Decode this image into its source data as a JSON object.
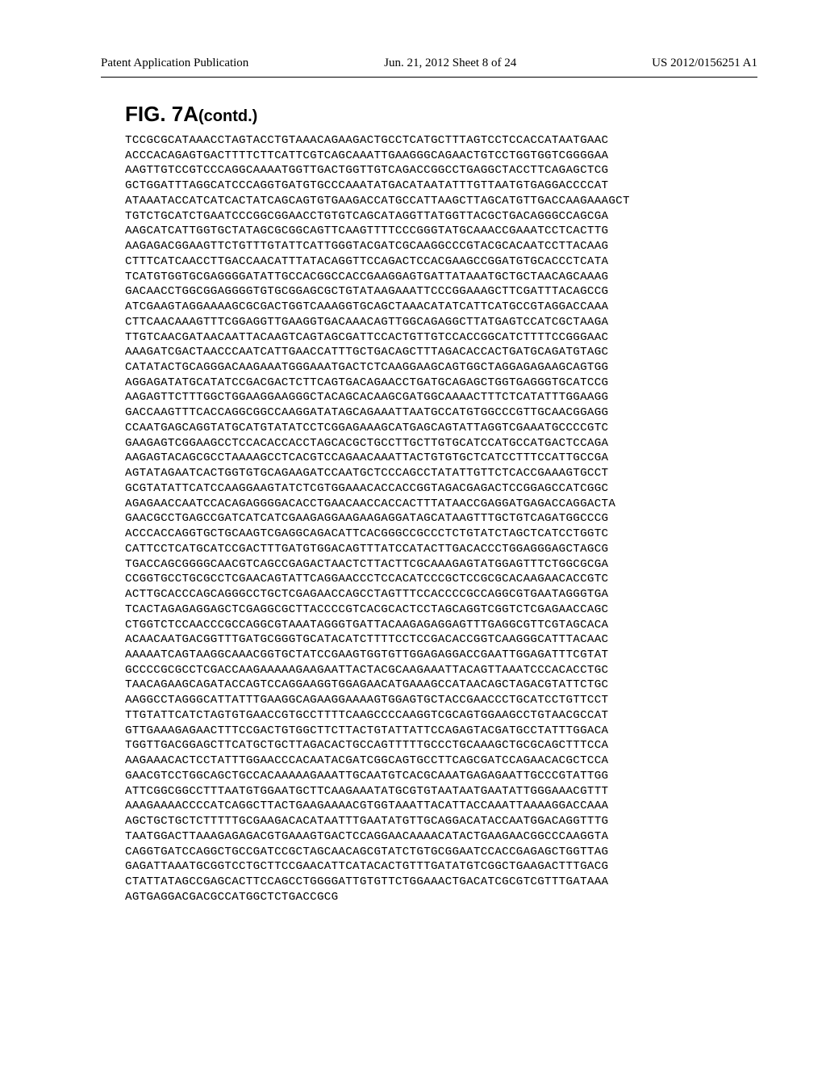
{
  "header": {
    "left": "Patent Application Publication",
    "center": "Jun. 21, 2012  Sheet 8 of 24",
    "right": "US 2012/0156251 A1"
  },
  "figure": {
    "title_main": "FIG. 7A",
    "title_suffix": "(contd.)"
  },
  "sequence_lines": [
    "TCCGCGCATAAACCTAGTACCTGTAAACAGAAGACTGCCTCATGCTTTAGTCCTCCACCATAATGAAC",
    "ACCCACAGAGTGACTTTTCTTCATTCGTCAGCAAATTGAAGGGCAGAACTGTCCTGGTGGTCGGGGAA",
    "AAGTTGTCCGTCCCAGGCAAAATGGTTGACTGGTTGTCAGACCGGCCTGAGGCTACCTTCAGAGCTCG",
    "GCTGGATTTAGGCATCCCAGGTGATGTGCCCAAATATGACATAATATTTGTTAATGTGAGGACCCCAT",
    "ATAAATACCATCATCACTATCAGCAGTGTGAAGACCATGCCATTAAGCTTAGCATGTTGACCAAGAAAGCT",
    "TGTCTGCATCTGAATCCCGGCGGAACCTGTGTCAGCATAGGTTATGGTTACGCTGACAGGGCCAGCGA",
    "AAGCATCATTGGTGCTATAGCGCGGCAGTTCAAGTTTTCCCGGGTATGCAAACCGAAATCCTCACTTG",
    "AAGAGACGGAAGTTCTGTTTGTATTCATTGGGTACGATCGCAAGGCCCGTACGCACAATCCTTACAAG",
    "CTTTCATCAACCTTGACCAACATTTATACAGGTTCCAGACTCCACGAAGCCGGATGTGCACCCTCATA",
    "TCATGTGGTGCGAGGGGATATTGCCACGGCCACCGAAGGAGTGATTATAAATGCTGCTAACAGCAAAG",
    "GACAACCTGGCGGAGGGGTGTGCGGAGCGCTGTATAAGAAATTCCCGGAAAGCTTCGATTTACAGCCG",
    "ATCGAAGTAGGAAAAGCGCGACTGGTCAAAGGTGCAGCTAAACATATCATTCATGCCGTAGGACCAAA",
    "CTTCAACAAAGTTTCGGAGGTTGAAGGTGACAAACAGTTGGCAGAGGCTTATGAGTCCATCGCTAAGA",
    "TTGTCAACGATAACAATTACAAGTCAGTAGCGATTCCACTGTTGTCCACCGGCATCTTTTCCGGGAAC",
    "AAAGATCGACTAACCCAATCATTGAACCATTTGCTGACAGCTTTAGACACCACTGATGCAGATGTAGC",
    "CATATACTGCAGGGACAAGAAATGGGAAATGACTCTCAAGGAAGCAGTGGCTAGGAGAGAAGCAGTGG",
    "AGGAGATATGCATATCCGACGACTCTTCAGTGACAGAACCTGATGCAGAGCTGGTGAGGGTGCATCCG",
    "AAGAGTTCTTTGGCTGGAAGGAAGGGCTACAGCACAAGCGATGGCAAAACTTTCTCATATTTGGAAGG",
    "GACCAAGTTTCACCAGGCGGCCAAGGATATAGCAGAAATTAATGCCATGTGGCCCGTTGCAACGGAGG",
    "CCAATGAGCAGGTATGCATGTATATCCTCGGAGAAAGCATGAGCAGTATTAGGTCGAAATGCCCCGTC",
    "GAAGAGTCGGAAGCCTCCACACCACCTAGCACGCTGCCTTGCTTGTGCATCCATGCCATGACTCCAGA",
    "AAGAGTACAGCGCCTAAAAGCCTCACGTCCAGAACAAATTACTGTGTGCTCATCCTTTCCATTGCCGA",
    "AGTATAGAATCACTGGTGTGCAGAAGATCCAATGCTCCCAGCCTATATTGTTCTCACCGAAAGTGCCT",
    "GCGTATATTCATCCAAGGAAGTATCTCGTGGAAACACCACCGGTAGACGAGACTCCGGAGCCATCGGC",
    "AGAGAACCAATCCACAGAGGGGACACCTGAACAACCACCACTTTATAACCGAGGATGAGACCAGGACTA",
    "GAACGCCTGAGCCGATCATCATCGAAGAGGAAGAAGAGGATAGCATAAGTTTGCTGTCAGATGGCCCG",
    "ACCCACCAGGTGCTGCAAGTCGAGGCAGACATTCACGGGCCGCCCTCTGTATCTAGCTCATCCTGGTC",
    "CATTCCTCATGCATCCGACTTTGATGTGGACAGTTTATCCATACTTGACACCCTGGAGGGAGCTAGCG",
    "TGACCAGCGGGGCAACGTCAGCCGAGACTAACTCTTACTTCGCAAAGAGTATGGAGTTTCTGGCGCGA",
    "CCGGTGCCTGCGCCTCGAACAGTATTCAGGAACCCTCCACATCCCGCTCCGCGCACAAGAACACCGTC",
    "ACTTGCACCCAGCAGGGCCTGCTCGAGAACCAGCCTAGTTTCCACCCCGCCAGGCGTGAATAGGGTGA",
    "TCACTAGAGAGGAGCTCGAGGCGCTTACCCCGTCACGCACTCCTAGCAGGTCGGTCTCGAGAACCAGC",
    "CTGGTCTCCAACCCGCCAGGCGTAAATAGGGTGATTACAAGAGAGGAGTTTGAGGCGTTCGTAGCACA",
    "ACAACAATGACGGTTTGATGCGGGTGCATACATCTTTTCCTCCGACACCGGTCAAGGGCATTTACAAC",
    "AAAAATCAGTAAGGCAAACGGTGCTATCCGAAGTGGTGTTGGAGAGGACCGAATTGGAGATTTCGTAT",
    "GCCCCGCGCCTCGACCAAGAAAAAGAAGAATTACTACGCAAGAAATTACAGTTAAATCCCACACCTGC",
    "TAACAGAAGCAGATACCAGTCCAGGAAGGTGGAGAACATGAAAGCCATAACAGCTAGACGTATTCTGC",
    "AAGGCCTAGGGCATTATTTGAAGGCAGAAGGAAAAGTGGAGTGCTACCGAACCCTGCATCCTGTTCCT",
    "TTGTATTCATCTAGTGTGAACCGTGCCTTTTCAAGCCCCAAGGTCGCAGTGGAAGCCTGTAACGCCAT",
    "GTTGAAAGAGAACTTTCCGACTGTGGCTTCTTACTGTATTATTCCAGAGTACGATGCCTATTTGGACA",
    "TGGTTGACGGAGCTTCATGCTGCTTAGACACTGCCAGTTTTTGCCCTGCAAAGCTGCGCAGCTTTCCA",
    "AAGAAACACTCCTATTTGGAACCCACAATACGATCGGCAGTGCCTTCAGCGATCCAGAACACGCTCCA",
    "GAACGTCCTGGCAGCTGCCACAAAAAGAAATTGCAATGTCACGCAAATGAGAGAATTGCCCGTATTGG",
    "ATTCGGCGGCCTTTAATGTGGAATGCTTCAAGAAATATGCGTGTAATAATGAATATTGGGAAACGTTT",
    "AAAGAAAACCCCATCAGGCTTACTGAAGAAAACGTGGTAAATTACATTACCAAATTAAAAGGACCAAA",
    "AGCTGCTGCTCTTTTTGCGAAGACACATAATTTGAATATGTTGCAGGACATACCAATGGACAGGTTTG",
    "TAATGGACTTAAAGAGAGACGTGAAAGTGACTCCAGGAACAAAACATACTGAAGAACGGCCCAAGGTA",
    "CAGGTGATCCAGGCTGCCGATCCGCTAGCAACAGCGTATCTGTGCGGAATCCACCGAGAGCTGGTTAG",
    "GAGATTAAATGCGGTCCTGCTTCCGAACATTCATACACTGTTTGATATGTCGGCTGAAGACTTTGACG",
    "CTATTATAGCCGAGCACTTCCAGCCTGGGGATTGTGTTCTGGAAACTGACATCGCGTCGTTTGATAAA",
    "AGTGAGGACGACGCCATGGCTCTGACCGCG"
  ]
}
